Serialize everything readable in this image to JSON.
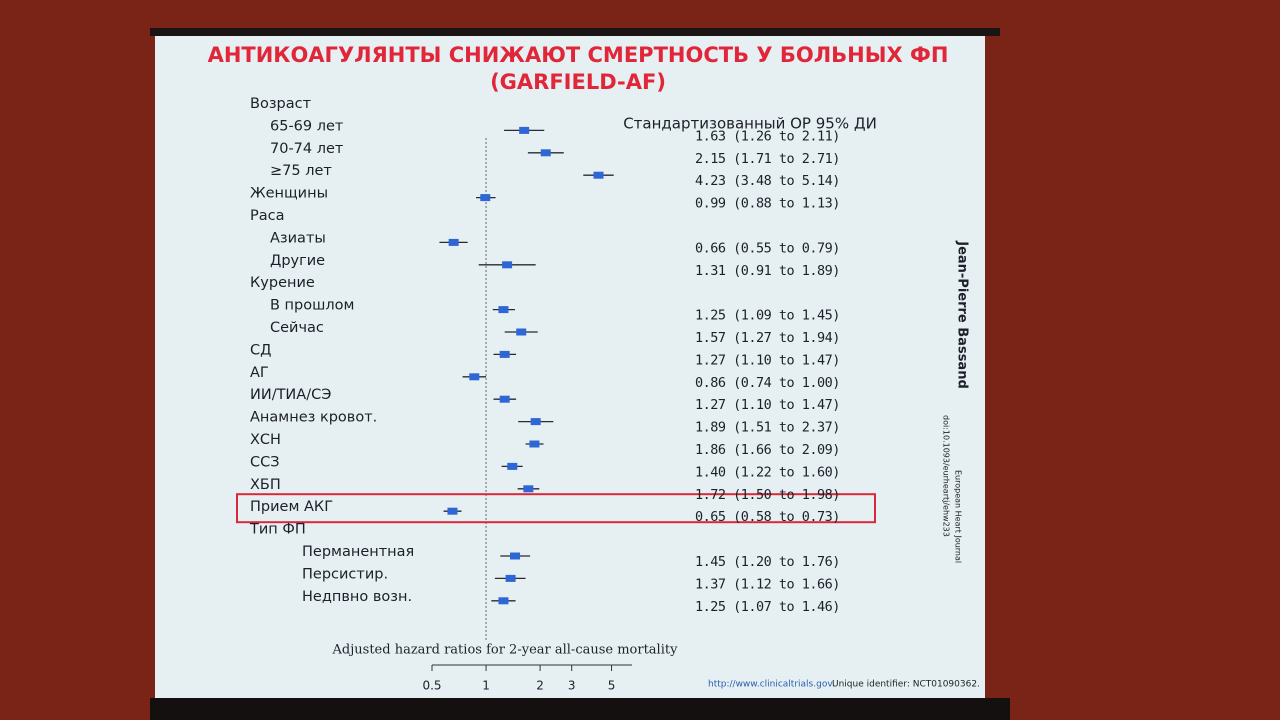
{
  "chart_data": {
    "type": "forest",
    "title": "АНТИКОАГУЛЯНТЫ СНИЖАЮТ СМЕРТНОСТЬ У БОЛЬНЫХ ФП",
    "subtitle": "(GARFIELD-AF)",
    "column_header": "Стандартизованный ОР 95% ДИ",
    "x_label": "Adjusted hazard ratios for 2-year all-cause mortality",
    "author": "Jean-Pierre Bassand",
    "source": "European Heart Journal",
    "doi": "doi:10.1093/eurheartj/ehw233",
    "footer_link": "http://www.clinicaltrials.gov.",
    "footer_text": "Unique identifier: NCT01090362.",
    "categories": [
      "Возраст",
      "65-69 лет",
      "70-74 лет",
      "≥75 лет",
      "Женщины",
      "Раса",
      "Азиаты",
      "Другие",
      "Курение",
      "В прошлом",
      "Сейчас",
      "СД",
      "АГ",
      "ИИ/ТИА/СЭ",
      "Анамнез кровот.",
      "ХСН",
      "ССЗ",
      "ХБП",
      "Прием АКГ",
      "Тип ФП",
      "Перманентная",
      "Персистир.",
      "Недпвно возн."
    ],
    "values": [
      null,
      1.63,
      2.15,
      4.23,
      0.99,
      null,
      0.66,
      1.31,
      null,
      1.25,
      1.57,
      1.27,
      0.86,
      1.27,
      1.89,
      1.86,
      1.4,
      1.72,
      0.65,
      null,
      1.45,
      1.37,
      1.25
    ],
    "lower": [
      null,
      1.26,
      1.71,
      3.48,
      0.88,
      null,
      0.55,
      0.91,
      null,
      1.09,
      1.27,
      1.1,
      0.74,
      1.1,
      1.51,
      1.66,
      1.22,
      1.5,
      0.58,
      null,
      1.2,
      1.12,
      1.07
    ],
    "upper": [
      null,
      2.11,
      2.71,
      5.14,
      1.13,
      null,
      0.79,
      1.89,
      null,
      1.45,
      1.94,
      1.47,
      1.0,
      1.47,
      2.37,
      2.09,
      1.6,
      1.98,
      0.73,
      null,
      1.76,
      1.66,
      1.46
    ],
    "value_labels": [
      null,
      "1.63 (1.26 to 2.11)",
      "2.15 (1.71 to 2.71)",
      "4.23 (3.48 to 5.14)",
      "0.99 (0.88 to 1.13)",
      null,
      "0.66 (0.55 to 0.79)",
      "1.31 (0.91 to 1.89)",
      null,
      "1.25 (1.09 to 1.45)",
      "1.57 (1.27 to 1.94)",
      "1.27 (1.10 to 1.47)",
      "0.86 (0.74 to 1.00)",
      "1.27 (1.10 to 1.47)",
      "1.89 (1.51 to 2.37)",
      "1.86 (1.66 to 2.09)",
      "1.40 (1.22 to 1.60)",
      "1.72 (1.50 to 1.98)",
      "0.65 (0.58 to 0.73)",
      null,
      "1.45 (1.20 to 1.76)",
      "1.37 (1.12 to 1.66)",
      "1.25 (1.07 to 1.46)"
    ],
    "xlim": [
      0.5,
      6.5
    ],
    "xticks": [
      0.5,
      1,
      2,
      3,
      5
    ],
    "log_x": true,
    "reference_line": 1,
    "color": "#2f66d6",
    "highlight_row": 18
  }
}
